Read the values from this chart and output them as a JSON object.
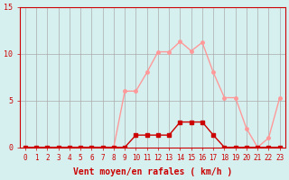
{
  "x": [
    0,
    1,
    2,
    3,
    4,
    5,
    6,
    7,
    8,
    9,
    10,
    11,
    12,
    13,
    14,
    15,
    16,
    17,
    18,
    19,
    20,
    21,
    22,
    23
  ],
  "rafales": [
    0,
    0,
    0,
    0,
    0,
    0,
    0,
    0,
    0,
    6,
    6,
    8,
    10.2,
    10.2,
    11.3,
    10.3,
    11.2,
    8,
    5.3,
    5.3,
    2,
    0,
    1,
    5.3
  ],
  "moyen": [
    0,
    0,
    0,
    0,
    0,
    0,
    0,
    0,
    0,
    0,
    1.3,
    1.3,
    1.3,
    1.3,
    2.7,
    2.7,
    2.7,
    1.3,
    0,
    0,
    0,
    0,
    0,
    0
  ],
  "bg_color": "#d6f0f0",
  "line_color_rafales": "#ff9999",
  "line_color_moyen": "#cc0000",
  "marker_color_rafales": "#ff9999",
  "marker_color_moyen": "#cc0000",
  "grid_color": "#aaaaaa",
  "xlabel": "Vent moyen/en rafales ( km/h )",
  "ylim": [
    0,
    15
  ],
  "yticks": [
    0,
    5,
    10,
    15
  ],
  "xticks": [
    0,
    1,
    2,
    3,
    4,
    5,
    6,
    7,
    8,
    9,
    10,
    11,
    12,
    13,
    14,
    15,
    16,
    17,
    18,
    19,
    20,
    21,
    22,
    23
  ],
  "xlabel_color": "#cc0000",
  "tick_color": "#cc0000",
  "axis_color": "#cc0000"
}
